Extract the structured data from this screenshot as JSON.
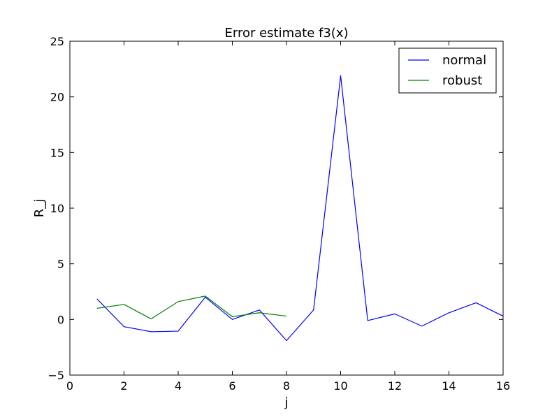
{
  "chart_data": {
    "type": "line",
    "title": "Error estimate f3(x)",
    "xlabel": "j",
    "ylabel": "R_j",
    "xlim": [
      0,
      16
    ],
    "ylim": [
      -5,
      25
    ],
    "xticks": [
      0,
      2,
      4,
      6,
      8,
      10,
      12,
      14,
      16
    ],
    "yticks": [
      -5,
      0,
      5,
      10,
      15,
      20,
      25
    ],
    "grid": false,
    "legend_position": "top-right",
    "series": [
      {
        "name": "normal",
        "color": "#0000ff",
        "x": [
          1,
          2,
          3,
          4,
          5,
          6,
          7,
          8,
          9,
          10,
          11,
          12,
          13,
          14,
          15,
          16
        ],
        "y": [
          1.85,
          -0.65,
          -1.1,
          -1.05,
          2.0,
          0.0,
          0.85,
          -1.9,
          0.85,
          21.9,
          -0.1,
          0.5,
          -0.6,
          0.6,
          1.5,
          0.3
        ]
      },
      {
        "name": "robust",
        "color": "#008000",
        "x": [
          1,
          2,
          3,
          4,
          5,
          6,
          7,
          8
        ],
        "y": [
          1.0,
          1.35,
          0.05,
          1.6,
          2.1,
          0.25,
          0.6,
          0.3
        ]
      }
    ]
  }
}
